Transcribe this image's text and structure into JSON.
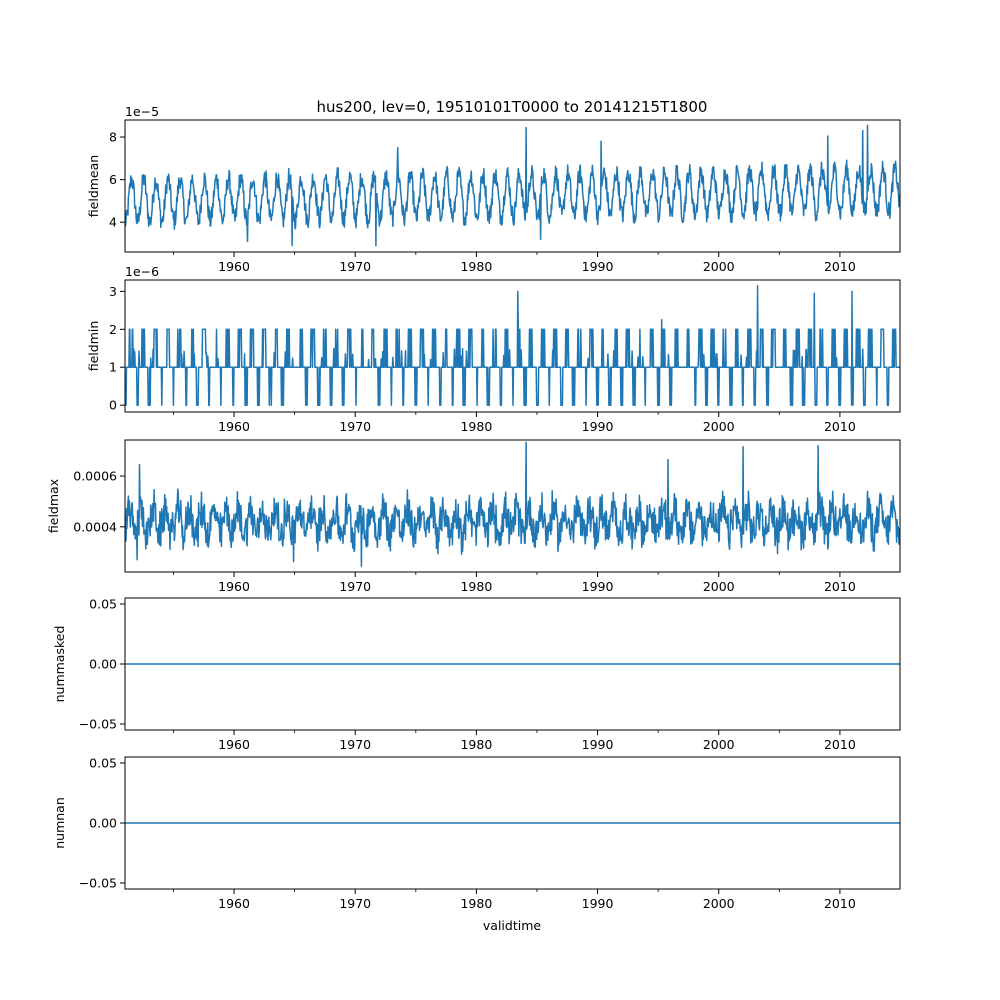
{
  "chart_data": {
    "type": "line",
    "title": "hus200, lev=0, 19510101T0000 to 20141215T1800",
    "xlabel": "validtime",
    "xlim": [
      1951.0,
      2014.96
    ],
    "x_ticks": [
      1960,
      1970,
      1980,
      1990,
      2000,
      2010
    ],
    "x_tick_labels": [
      "1960",
      "1970",
      "1980",
      "1990",
      "2000",
      "2010"
    ],
    "x_minor_ticks": [
      1955,
      1965,
      1975,
      1985,
      1995,
      2005
    ],
    "line_color": "#1f77b4",
    "panels": [
      {
        "name": "fieldmean",
        "ylabel": "fieldmean",
        "offset_text": "1e−5",
        "ylim": [
          2.6,
          8.8
        ],
        "y_ticks": [
          4,
          6,
          8
        ],
        "y_tick_labels": [
          "4",
          "6",
          "8"
        ],
        "signal": {
          "kind": "seasonal",
          "base": 5.0,
          "amp": 1.0,
          "noise": 0.45,
          "trend": 0.008
        },
        "extremes": {
          "max": [
            [
              1984.1,
              8.45
            ],
            [
              2012.3,
              8.55
            ],
            [
              2011.9,
              8.3
            ],
            [
              2009.0,
              8.05
            ],
            [
              1973.5,
              7.5
            ],
            [
              1990.3,
              7.8
            ]
          ],
          "min": [
            [
              1964.8,
              2.9
            ],
            [
              1971.7,
              2.9
            ],
            [
              1961.1,
              3.1
            ],
            [
              1985.3,
              3.2
            ]
          ]
        }
      },
      {
        "name": "fieldmin",
        "ylabel": "fieldmin",
        "offset_text": "1e−6",
        "ylim": [
          -0.18,
          3.3
        ],
        "y_ticks": [
          0,
          1,
          2,
          3
        ],
        "y_tick_labels": [
          "0",
          "1",
          "2",
          "3"
        ],
        "signal": {
          "kind": "discrete",
          "levels": [
            0,
            1,
            2
          ],
          "base": 1
        },
        "extremes": {
          "max": [
            [
              1983.4,
              3.0
            ],
            [
              2003.2,
              3.15
            ],
            [
              2007.9,
              2.95
            ],
            [
              2011.0,
              3.0
            ],
            [
              1995.3,
              2.25
            ]
          ],
          "min": []
        }
      },
      {
        "name": "fieldmax",
        "ylabel": "fieldmax",
        "offset_text": "",
        "ylim": [
          0.000222,
          0.000742
        ],
        "y_ticks": [
          0.0004,
          0.0006
        ],
        "y_tick_labels": [
          "0.0004",
          "0.0006"
        ],
        "signal": {
          "kind": "noisy",
          "base": 0.00042,
          "amp": 4.5e-05,
          "noise": 9e-05,
          "trend": 0.0
        },
        "extremes": {
          "max": [
            [
              1984.1,
              0.000733
            ],
            [
              2008.2,
              0.00072
            ],
            [
              2002.0,
              0.000715
            ],
            [
              1995.8,
              0.000665
            ],
            [
              1952.2,
              0.000645
            ]
          ],
          "min": [
            [
              1970.5,
              0.000245
            ],
            [
              1964.9,
              0.000262
            ],
            [
              1952.0,
              0.00027
            ]
          ]
        }
      },
      {
        "name": "nummasked",
        "ylabel": "nummasked",
        "offset_text": "",
        "ylim": [
          -0.055,
          0.055
        ],
        "y_ticks": [
          -0.05,
          0.0,
          0.05
        ],
        "y_tick_labels": [
          "−0.05",
          "0.00",
          "0.05"
        ],
        "signal": {
          "kind": "constant",
          "value": 0.0
        },
        "extremes": {
          "max": [],
          "min": []
        }
      },
      {
        "name": "numnan",
        "ylabel": "numnan",
        "offset_text": "",
        "ylim": [
          -0.055,
          0.055
        ],
        "y_ticks": [
          -0.05,
          0.0,
          0.05
        ],
        "y_tick_labels": [
          "−0.05",
          "0.00",
          "0.05"
        ],
        "signal": {
          "kind": "constant",
          "value": 0.0
        },
        "extremes": {
          "max": [],
          "min": []
        }
      }
    ]
  }
}
